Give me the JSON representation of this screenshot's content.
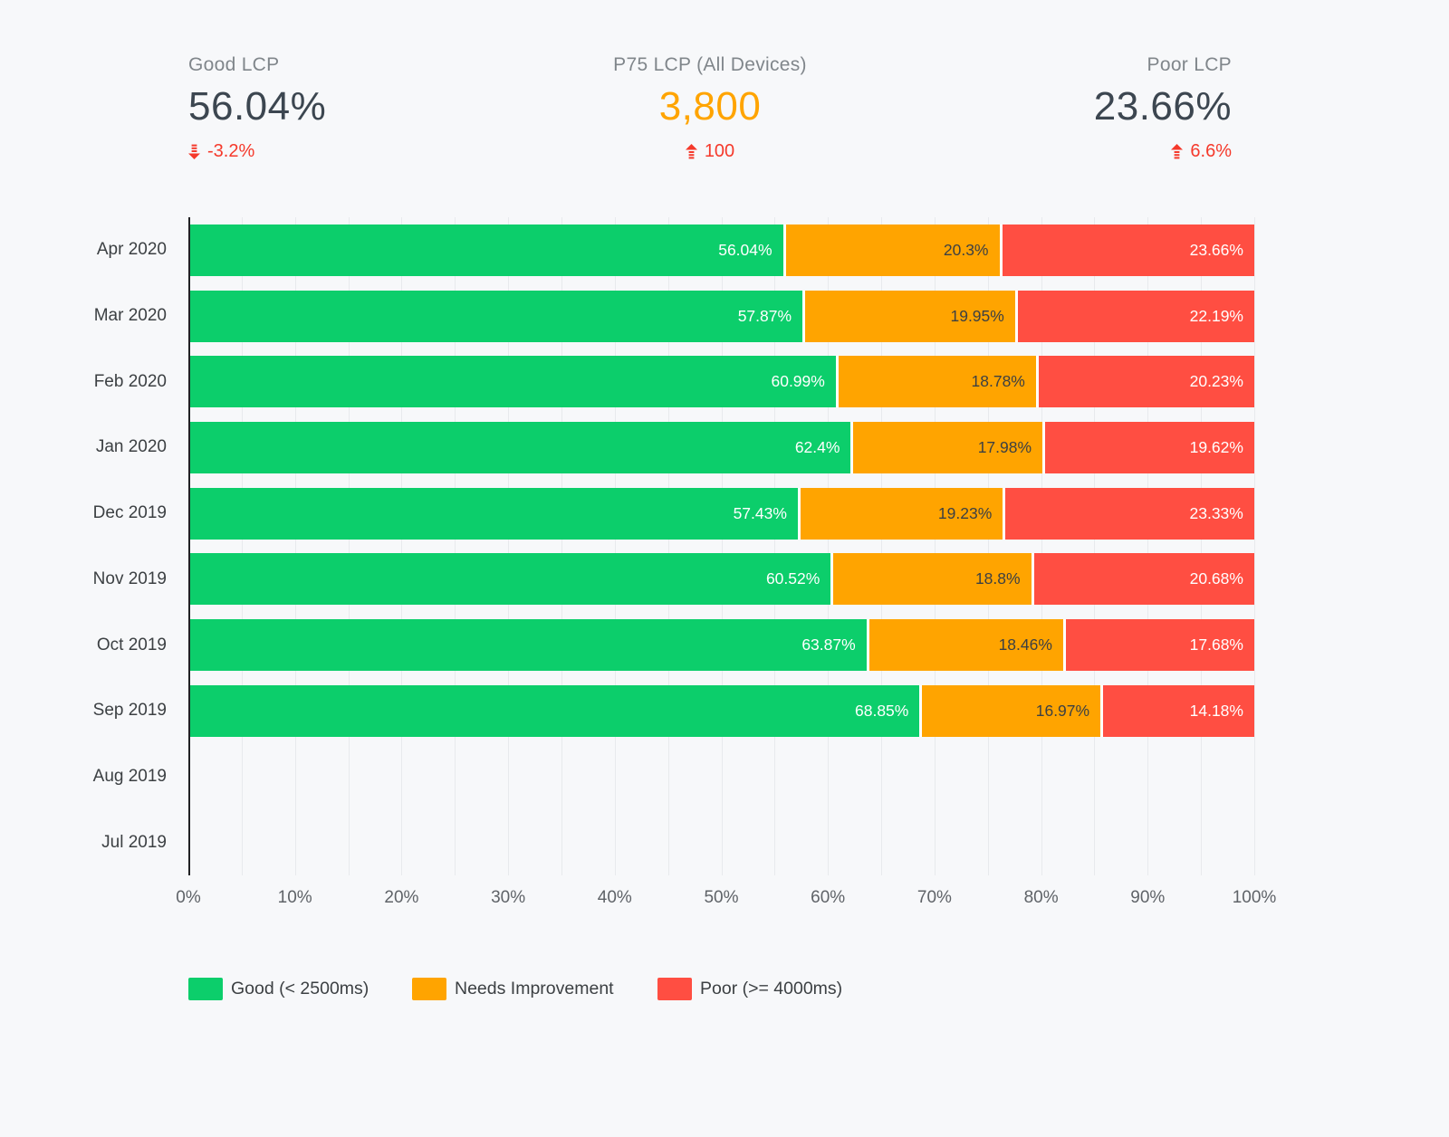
{
  "colors": {
    "background": "#f7f8fa",
    "grid": "#e8eaed",
    "axis": "#202124",
    "change_red": "#f5392b",
    "good_green": "#0cce6b",
    "ni_orange": "#ffa400",
    "poor_red": "#ff4e42"
  },
  "scorecards": [
    {
      "label": "Good LCP",
      "value": "56.04%",
      "change": "-3.2%",
      "direction": "down",
      "value_color": "#3c4650"
    },
    {
      "label": "P75 LCP (All Devices)",
      "value": "3,800",
      "change": "100",
      "direction": "up",
      "value_color": "#ffa400"
    },
    {
      "label": "Poor LCP",
      "value": "23.66%",
      "change": "6.6%",
      "direction": "up",
      "value_color": "#3c4650"
    }
  ],
  "chart_data": {
    "type": "bar",
    "orientation": "horizontal",
    "stacked": true,
    "categories": [
      "Apr 2020",
      "Mar 2020",
      "Feb 2020",
      "Jan 2020",
      "Dec 2019",
      "Nov 2019",
      "Oct 2019",
      "Sep 2019",
      "Aug 2019",
      "Jul 2019"
    ],
    "series": [
      {
        "key": "good",
        "name": "Good (< 2500ms)",
        "color": "#0cce6b",
        "label_color": "#ffffff",
        "values": [
          56.04,
          57.87,
          60.99,
          62.4,
          57.43,
          60.52,
          63.87,
          68.85,
          null,
          null
        ]
      },
      {
        "key": "needs-improvement",
        "name": "Needs Improvement",
        "color": "#ffa400",
        "label_color": "#3c4043",
        "values": [
          20.3,
          19.95,
          18.78,
          17.98,
          19.23,
          18.8,
          18.46,
          16.97,
          null,
          null
        ]
      },
      {
        "key": "poor",
        "name": "Poor (>= 4000ms)",
        "color": "#ff4e42",
        "label_color": "#ffffff",
        "values": [
          23.66,
          22.19,
          20.23,
          19.62,
          23.33,
          20.68,
          17.68,
          14.18,
          null,
          null
        ]
      }
    ],
    "x_ticks": [
      "0%",
      "10%",
      "20%",
      "30%",
      "40%",
      "50%",
      "60%",
      "70%",
      "80%",
      "90%",
      "100%"
    ],
    "xlim": [
      0,
      100
    ],
    "grid_step_percent": 5,
    "grid": true,
    "legend_position": "bottom"
  }
}
